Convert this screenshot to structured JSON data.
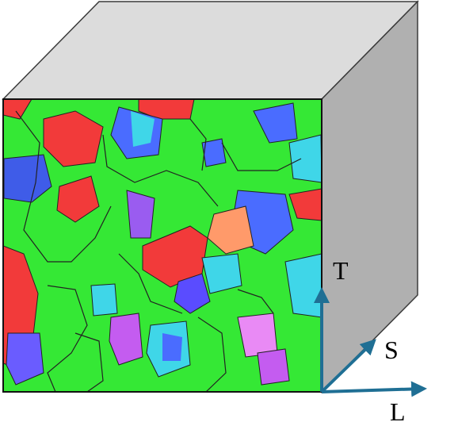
{
  "axes": {
    "t_label": "T",
    "s_label": "S",
    "l_label": "L"
  },
  "colors": {
    "cube_top": "#dcdcdc",
    "cube_side": "#b0b0b0",
    "cube_edge": "#3a3a3a",
    "arrow": "#1f6f94",
    "map_green": "#35e835",
    "map_red": "#f23a3a",
    "map_blue": "#4a6cff",
    "map_cyan": "#3fd6e8",
    "map_magenta": "#c45cf0"
  }
}
